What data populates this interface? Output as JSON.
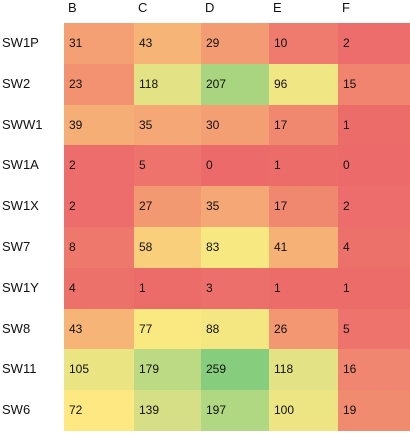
{
  "chart_data": {
    "type": "heatmap",
    "columns": [
      "B",
      "C",
      "D",
      "E",
      "F"
    ],
    "rows": [
      "SW1P",
      "SW2",
      "SWW1",
      "SW1A",
      "SW1X",
      "SW7",
      "SW1Y",
      "SW8",
      "SW11",
      "SW6"
    ],
    "values": [
      [
        31,
        43,
        29,
        10,
        2
      ],
      [
        23,
        118,
        207,
        96,
        15
      ],
      [
        39,
        35,
        30,
        17,
        1
      ],
      [
        2,
        5,
        0,
        1,
        0
      ],
      [
        2,
        27,
        35,
        17,
        2
      ],
      [
        8,
        58,
        83,
        41,
        4
      ],
      [
        4,
        1,
        3,
        1,
        1
      ],
      [
        43,
        77,
        88,
        26,
        5
      ],
      [
        105,
        179,
        259,
        118,
        16
      ],
      [
        72,
        139,
        197,
        100,
        19
      ]
    ],
    "color_scale": [
      "#ec6a6a",
      "#f4a274",
      "#fde981",
      "#d5df86",
      "#86cd7d"
    ]
  }
}
